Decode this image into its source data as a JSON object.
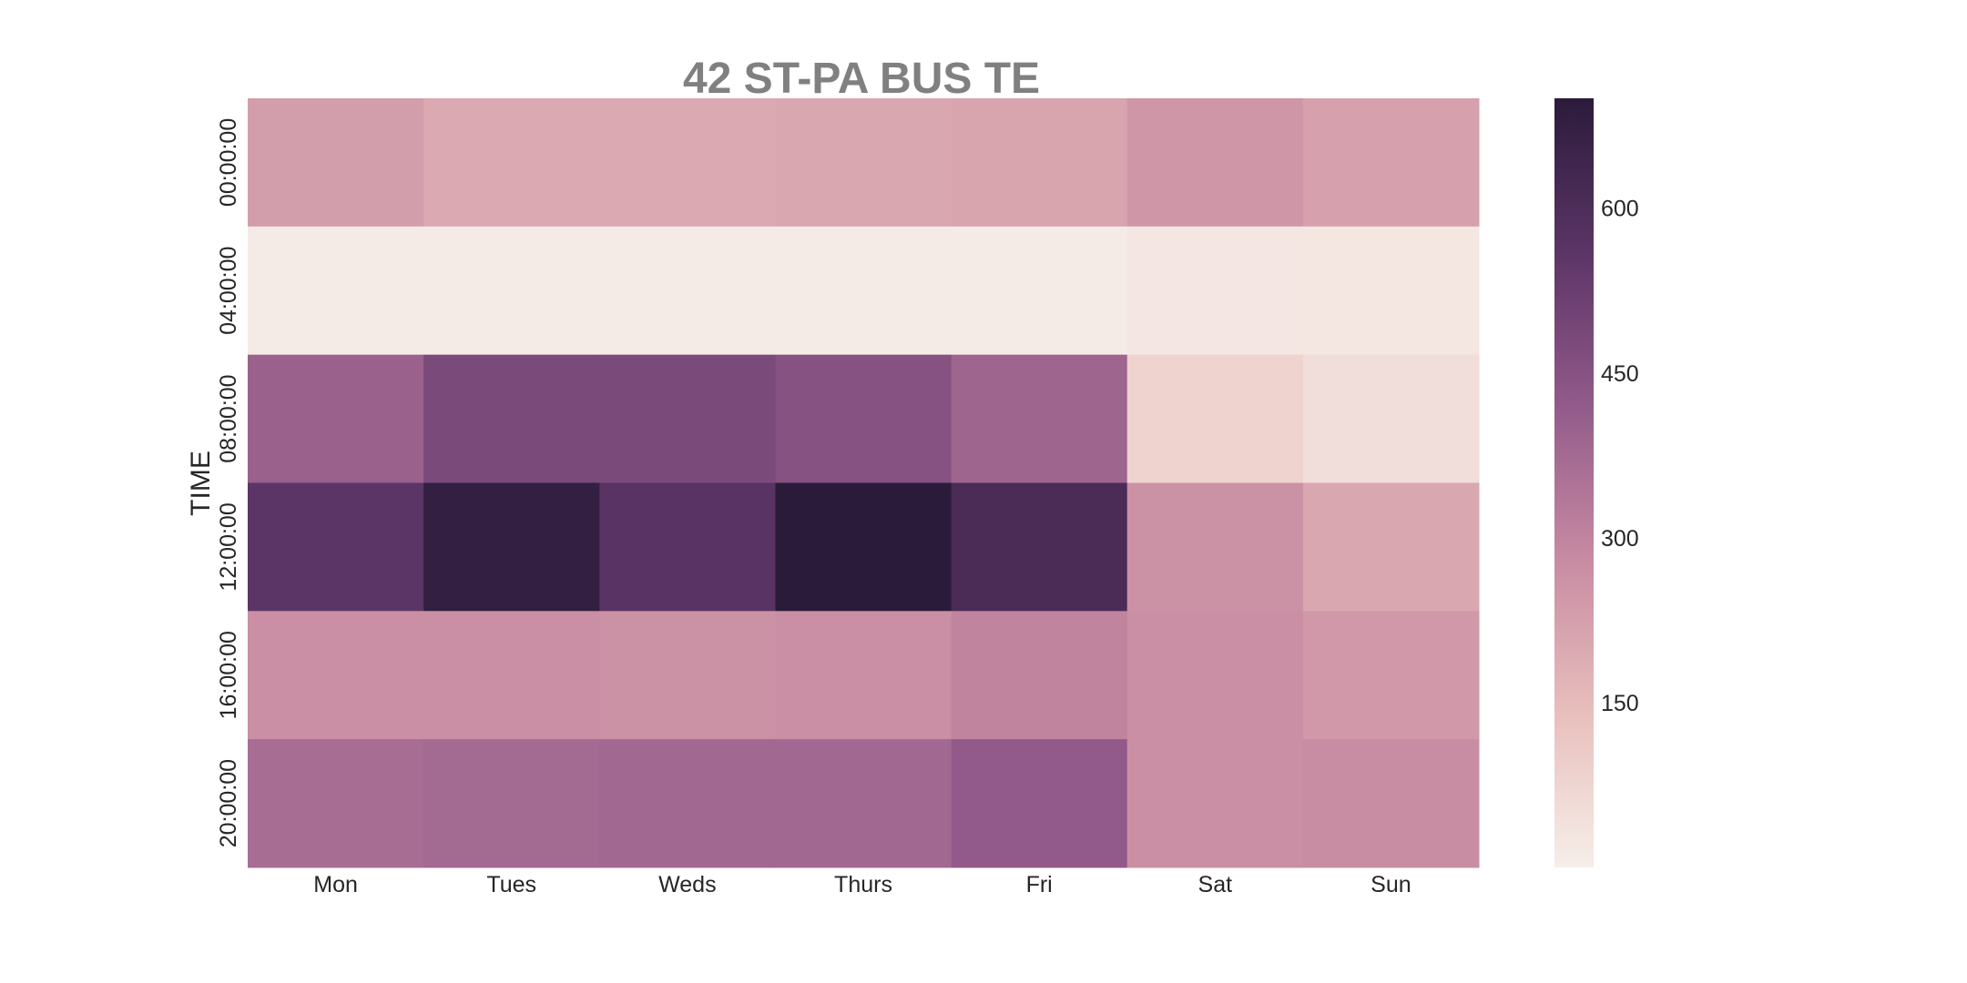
{
  "chart_data": {
    "type": "heatmap",
    "title": "42 ST-PA BUS TE",
    "xlabel": "",
    "ylabel": "TIME",
    "x_categories": [
      "Mon",
      "Tues",
      "Weds",
      "Thurs",
      "Fri",
      "Sat",
      "Sun"
    ],
    "y_categories": [
      "00:00:00",
      "04:00:00",
      "08:00:00",
      "12:00:00",
      "16:00:00",
      "20:00:00"
    ],
    "values": [
      [
        230,
        200,
        200,
        205,
        210,
        250,
        220
      ],
      [
        8,
        8,
        8,
        8,
        8,
        20,
        25
      ],
      [
        400,
        480,
        480,
        450,
        390,
        80,
        50
      ],
      [
        560,
        680,
        570,
        700,
        610,
        265,
        205
      ],
      [
        270,
        270,
        265,
        270,
        300,
        270,
        245
      ],
      [
        365,
        375,
        380,
        380,
        420,
        270,
        275
      ]
    ],
    "colorbar": {
      "vmin": 0,
      "vmax": 700,
      "ticks": [
        150,
        300,
        450,
        600
      ],
      "colors_low_to_high": [
        "#f6eee9",
        "#e8bfbc",
        "#c88ba2",
        "#925a8a",
        "#5b3566",
        "#2b1b3b"
      ]
    }
  }
}
